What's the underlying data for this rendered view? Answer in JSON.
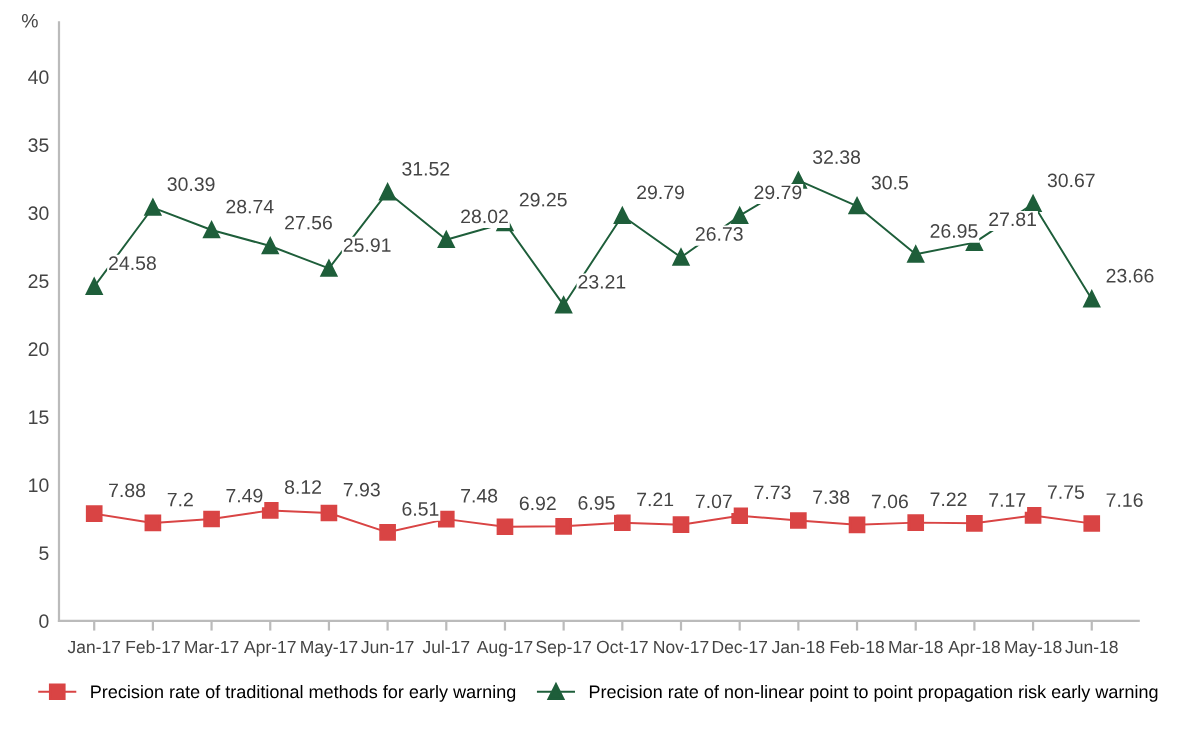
{
  "chart_data": {
    "type": "line",
    "ylabel": "%",
    "categories": [
      "Jan-17",
      "Feb-17",
      "Mar-17",
      "Apr-17",
      "May-17",
      "Jun-17",
      "Jul-17",
      "Aug-17",
      "Sep-17",
      "Oct-17",
      "Nov-17",
      "Dec-17",
      "Jan-18",
      "Feb-18",
      "Mar-18",
      "Apr-18",
      "May-18",
      "Jun-18"
    ],
    "series": [
      {
        "name": "Precision rate of traditional methods for early warning",
        "color": "#d94444",
        "marker": "square",
        "values": [
          7.88,
          7.2,
          7.49,
          8.12,
          7.93,
          6.51,
          7.48,
          6.92,
          6.95,
          7.21,
          7.07,
          7.73,
          7.38,
          7.06,
          7.22,
          7.17,
          7.75,
          7.16
        ]
      },
      {
        "name": "Precision rate of non-linear point to point propagation risk early warning",
        "color": "#1e5e3a",
        "marker": "triangle",
        "values": [
          24.58,
          30.39,
          28.74,
          27.56,
          25.91,
          31.52,
          28.02,
          29.25,
          23.21,
          29.79,
          26.73,
          29.79,
          32.38,
          30.5,
          26.95,
          27.81,
          30.67,
          23.66
        ]
      }
    ],
    "ylim": [
      0,
      44
    ],
    "yticks": [
      0,
      5,
      10,
      15,
      20,
      25,
      30,
      35,
      40
    ],
    "grid": false,
    "legend": "bottom",
    "data_labels": true,
    "line_style": "solid"
  }
}
